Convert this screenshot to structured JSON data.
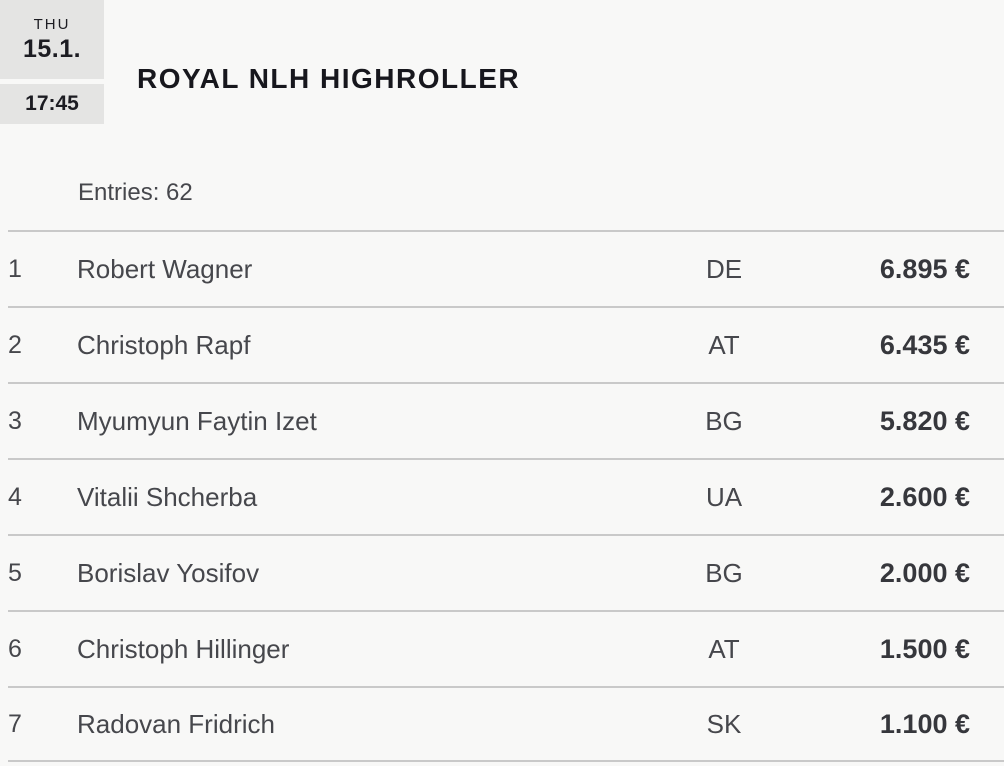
{
  "event": {
    "day": "THU",
    "date": "15.1.",
    "time": "17:45",
    "title": "ROYAL NLH HIGHROLLER",
    "entries_label": "Entries:",
    "entries_count": "62"
  },
  "standings": {
    "rows": [
      {
        "rank": "1",
        "name": "Robert Wagner",
        "country": "DE",
        "prize": "6.895 €"
      },
      {
        "rank": "2",
        "name": "Christoph Rapf",
        "country": "AT",
        "prize": "6.435 €"
      },
      {
        "rank": "3",
        "name": "Myumyun Faytin Izet",
        "country": "BG",
        "prize": "5.820 €"
      },
      {
        "rank": "4",
        "name": "Vitalii Shcherba",
        "country": "UA",
        "prize": "2.600 €"
      },
      {
        "rank": "5",
        "name": "Borislav Yosifov",
        "country": "BG",
        "prize": "2.000 €"
      },
      {
        "rank": "6",
        "name": "Christoph Hillinger",
        "country": "AT",
        "prize": "1.500 €"
      },
      {
        "rank": "7",
        "name": "Radovan Fridrich",
        "country": "SK",
        "prize": "1.100 €"
      }
    ]
  },
  "colors": {
    "page_background": "#f8f8f7",
    "badge_background": "#e4e4e3",
    "title_text": "#17171d",
    "body_text": "#46474c",
    "amount_text": "#36373c",
    "separator": "#c9c9c9"
  }
}
